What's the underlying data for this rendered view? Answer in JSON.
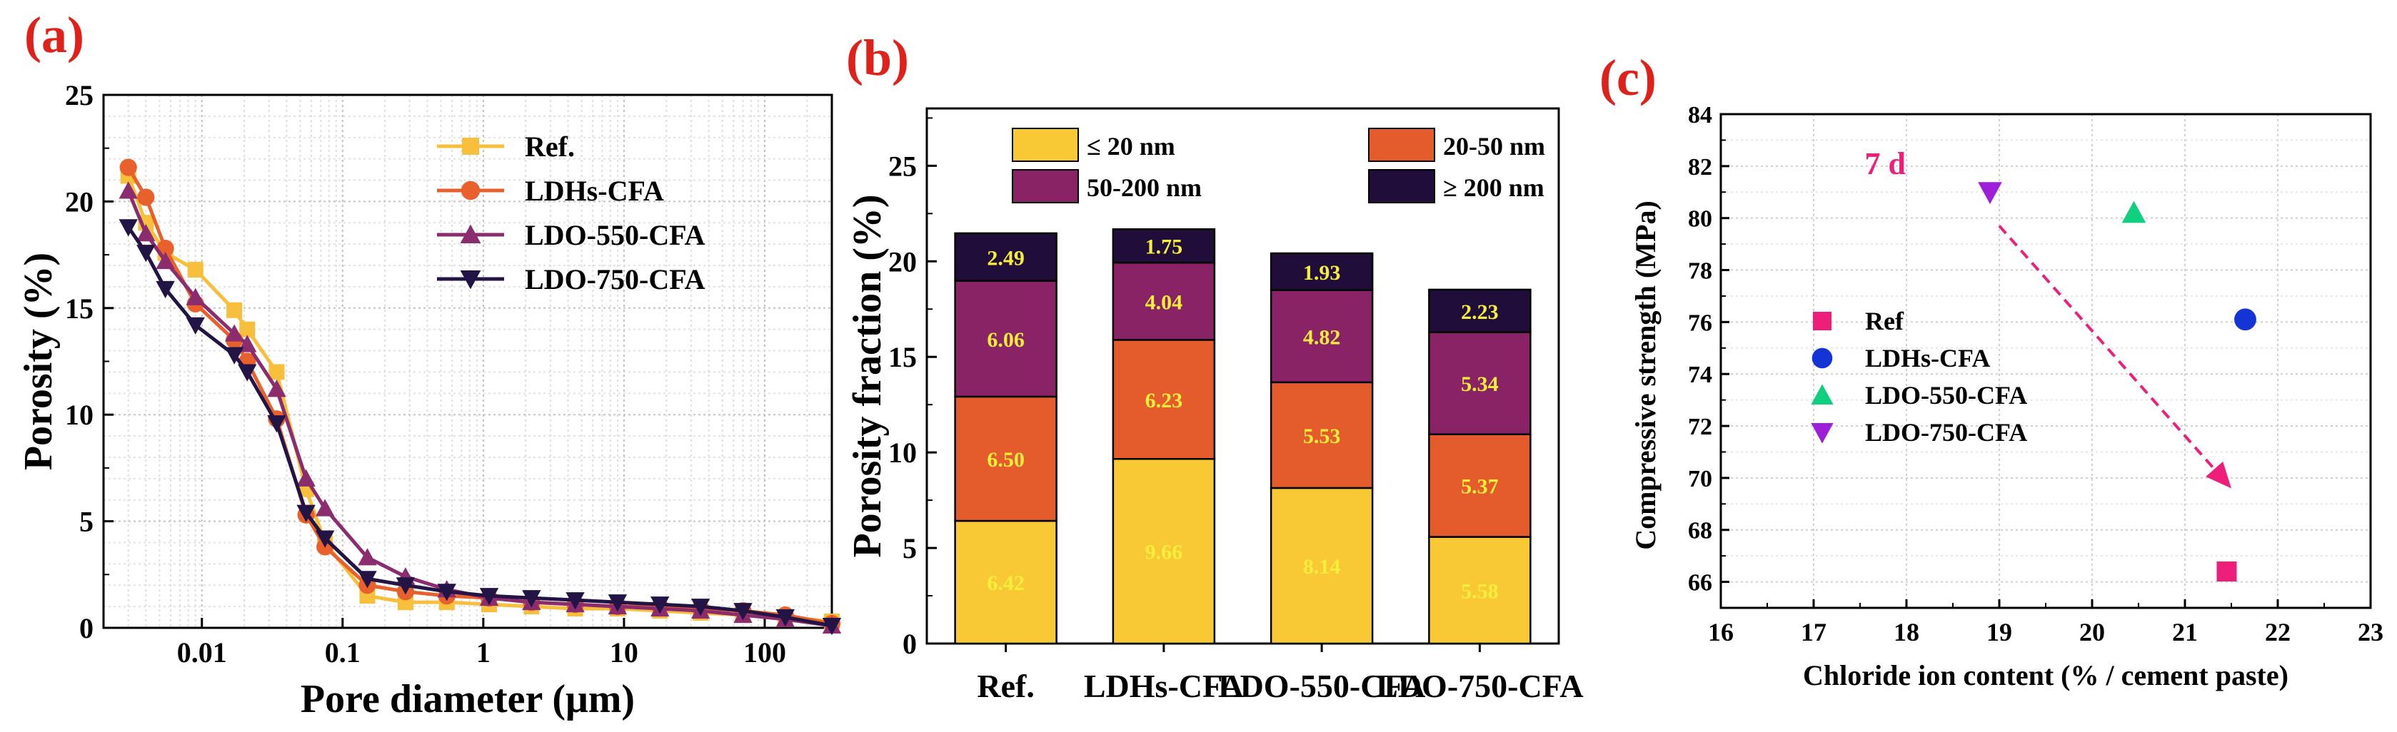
{
  "panels": {
    "a": "(a)",
    "b": "(b)",
    "c": "(c)"
  },
  "colors": {
    "ref": "#f7bf3b",
    "ldhs": "#e8602c",
    "ldo550": "#8a2c6e",
    "ldo750": "#231446",
    "b_le20": "#f9c935",
    "b_20_50": "#e45b2c",
    "b_50_200": "#8a2266",
    "b_ge200": "#200d3a",
    "c_ref": "#ee1f7a",
    "c_ldhs": "#1534d6",
    "c_ldo550": "#10cf7f",
    "c_ldo750": "#9d20d8",
    "c_arrow": "#ee1f7a"
  },
  "chart_data": [
    {
      "type": "line",
      "xscale": "log",
      "xlabel": "Pore diameter (μm)",
      "ylabel": "Porosity (%)",
      "xlim": [
        0.002,
        300
      ],
      "ylim": [
        0,
        25
      ],
      "yticks": [
        "0",
        "5",
        "10",
        "15",
        "20",
        "25"
      ],
      "xticks": [
        {
          "v": 0.01,
          "label": "0.01"
        },
        {
          "v": 0.1,
          "label": "0.1"
        },
        {
          "v": 1,
          "label": "1"
        },
        {
          "v": 10,
          "label": "10"
        },
        {
          "v": 100,
          "label": "100"
        }
      ],
      "legend_position": "top-right",
      "series": [
        {
          "key": "ref",
          "name": "Ref.",
          "marker": "square",
          "x": [
            0.003,
            0.004,
            0.0055,
            0.009,
            0.017,
            0.021,
            0.034,
            0.055,
            0.075,
            0.15,
            0.28,
            0.55,
            1.1,
            2.2,
            4.5,
            9,
            18,
            35,
            70,
            140,
            300
          ],
          "y": [
            21.2,
            19.0,
            17.6,
            16.8,
            14.9,
            14.0,
            12.0,
            6.5,
            4.0,
            1.5,
            1.2,
            1.2,
            1.1,
            1.0,
            0.9,
            0.9,
            0.8,
            0.7,
            0.6,
            0.5,
            0.3
          ]
        },
        {
          "key": "ldhs",
          "name": "LDHs-CFA",
          "marker": "circle",
          "x": [
            0.003,
            0.004,
            0.0055,
            0.009,
            0.017,
            0.021,
            0.034,
            0.055,
            0.075,
            0.15,
            0.28,
            0.55,
            1.1,
            2.2,
            4.5,
            9,
            18,
            35,
            70,
            140,
            300
          ],
          "y": [
            21.6,
            20.2,
            17.8,
            15.2,
            13.5,
            12.5,
            9.8,
            5.3,
            3.8,
            2.0,
            1.7,
            1.5,
            1.4,
            1.2,
            1.1,
            1.0,
            1.0,
            0.9,
            0.8,
            0.6,
            0.2
          ]
        },
        {
          "key": "ldo550",
          "name": "LDO-550-CFA",
          "marker": "triangle-up",
          "x": [
            0.003,
            0.004,
            0.0055,
            0.009,
            0.017,
            0.021,
            0.034,
            0.055,
            0.075,
            0.15,
            0.28,
            0.55,
            1.1,
            2.2,
            4.5,
            9,
            18,
            35,
            70,
            140,
            300
          ],
          "y": [
            20.5,
            18.5,
            17.2,
            15.5,
            13.8,
            13.3,
            11.2,
            7.0,
            5.6,
            3.3,
            2.4,
            1.8,
            1.4,
            1.2,
            1.1,
            1.0,
            0.9,
            0.8,
            0.6,
            0.4,
            0.1
          ]
        },
        {
          "key": "ldo750",
          "name": "LDO-750-CFA",
          "marker": "triangle-down",
          "x": [
            0.003,
            0.004,
            0.0055,
            0.009,
            0.017,
            0.021,
            0.034,
            0.055,
            0.075,
            0.15,
            0.28,
            0.55,
            1.1,
            2.2,
            4.5,
            9,
            18,
            35,
            70,
            140,
            300
          ],
          "y": [
            18.8,
            17.6,
            15.9,
            14.2,
            12.8,
            12.0,
            9.6,
            5.4,
            4.2,
            2.3,
            2.0,
            1.7,
            1.5,
            1.4,
            1.3,
            1.2,
            1.1,
            1.0,
            0.8,
            0.5,
            0.1
          ]
        }
      ]
    },
    {
      "type": "bar",
      "stacked": true,
      "ylabel": "Porosity fraction (%)",
      "ylim": [
        0,
        28
      ],
      "yticks": [
        "0",
        "5",
        "10",
        "15",
        "20",
        "25"
      ],
      "categories": [
        "Ref.",
        "LDHs-CFA",
        "LDO-550-CFA",
        "LDO-750-CFA"
      ],
      "legend_position": "top",
      "series": [
        {
          "key": "b_le20",
          "name": "≤ 20 nm",
          "values": [
            6.42,
            9.66,
            8.14,
            5.58
          ],
          "labels": [
            "6.42",
            "9.66",
            "8.14",
            "5.58"
          ]
        },
        {
          "key": "b_20_50",
          "name": "20-50 nm",
          "values": [
            6.5,
            6.23,
            5.53,
            5.37
          ],
          "labels": [
            "6.50",
            "6.23",
            "5.53",
            "5.37"
          ]
        },
        {
          "key": "b_50_200",
          "name": "50-200 nm",
          "values": [
            6.06,
            4.04,
            4.82,
            5.34
          ],
          "labels": [
            "6.06",
            "4.04",
            "4.82",
            "5.34"
          ]
        },
        {
          "key": "b_ge200",
          "name": "≥ 200 nm",
          "values": [
            2.49,
            1.75,
            1.93,
            2.23
          ],
          "labels": [
            "2.49",
            "1.75",
            "1.93",
            "2.23"
          ]
        }
      ]
    },
    {
      "type": "scatter",
      "xlabel": "Chloride ion content (% / cement paste)",
      "ylabel": "Compressive strength (MPa)",
      "xlim": [
        16,
        23
      ],
      "ylim": [
        65,
        84
      ],
      "xticks": [
        "16",
        "17",
        "18",
        "19",
        "20",
        "21",
        "22",
        "23"
      ],
      "yticks": [
        "66",
        "68",
        "70",
        "72",
        "74",
        "76",
        "78",
        "80",
        "82",
        "84"
      ],
      "annotation": "7 d",
      "arrow": {
        "from": [
          19.0,
          79.7
        ],
        "to": [
          21.5,
          69.6
        ]
      },
      "legend_position": "center-left",
      "series": [
        {
          "key": "c_ref",
          "name": "Ref",
          "marker": "square",
          "x": 21.45,
          "y": 66.4
        },
        {
          "key": "c_ldhs",
          "name": "LDHs-CFA",
          "marker": "circle",
          "x": 21.65,
          "y": 76.1
        },
        {
          "key": "c_ldo550",
          "name": "LDO-550-CFA",
          "marker": "triangle-up",
          "x": 20.45,
          "y": 80.2
        },
        {
          "key": "c_ldo750",
          "name": "LDO-750-CFA",
          "marker": "triangle-down",
          "x": 18.9,
          "y": 81.0
        }
      ]
    }
  ]
}
